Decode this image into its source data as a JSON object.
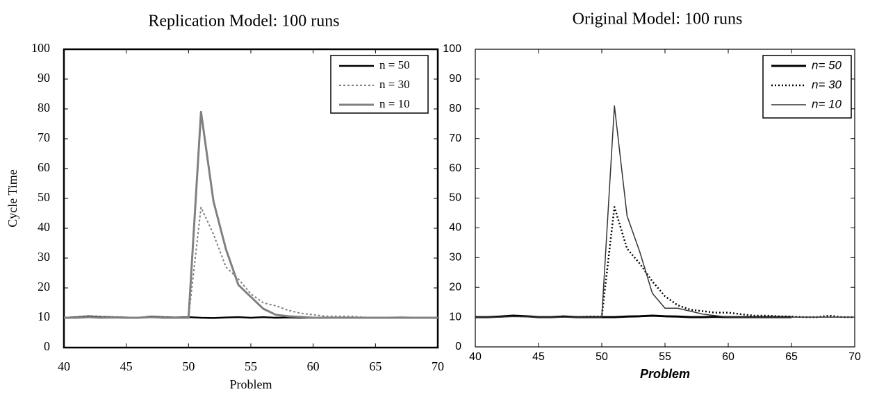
{
  "chart_data": [
    {
      "type": "line",
      "title": "Replication Model: 100 runs",
      "xlabel": "Problem",
      "ylabel": "Cycle Time",
      "x": [
        40,
        41,
        42,
        43,
        44,
        45,
        46,
        47,
        48,
        49,
        50,
        51,
        52,
        53,
        54,
        55,
        56,
        57,
        58,
        59,
        60,
        61,
        62,
        63,
        64,
        65,
        66,
        67,
        68,
        69,
        70
      ],
      "xlim": [
        40,
        70
      ],
      "xticks": [
        40,
        45,
        50,
        55,
        60,
        65,
        70
      ],
      "ylim": [
        0,
        100
      ],
      "yticks": [
        0,
        10,
        20,
        30,
        40,
        50,
        60,
        70,
        80,
        90,
        100
      ],
      "legend": "upper right",
      "series": [
        {
          "name": "n = 50",
          "color": "#000000",
          "linestyle": "solid",
          "values": [
            10,
            10.2,
            10.5,
            10.3,
            10.2,
            10.1,
            10,
            10.4,
            10.2,
            10.1,
            10.2,
            10,
            9.9,
            10.1,
            10.2,
            10,
            10.2,
            10,
            10.1,
            10,
            10,
            10,
            10,
            10,
            10,
            10,
            10,
            10,
            10,
            10,
            10
          ]
        },
        {
          "name": "n = 30",
          "color": "#808080",
          "linestyle": "dotted",
          "values": [
            10,
            10.2,
            10.4,
            10.3,
            10.2,
            10.1,
            10.1,
            10.3,
            10.2,
            10,
            10.2,
            47,
            38,
            27,
            23,
            18,
            15,
            14,
            12.5,
            11.5,
            11,
            10.5,
            10.5,
            10.5,
            10.2,
            10,
            10,
            10,
            10,
            10,
            10
          ]
        },
        {
          "name": "n = 10",
          "color": "#808080",
          "linestyle": "solid",
          "values": [
            10,
            10,
            10.2,
            10,
            10.1,
            10,
            10,
            10.2,
            10,
            10,
            10,
            79,
            49,
            33,
            21,
            17,
            13,
            11,
            10.5,
            10.3,
            10,
            10,
            10,
            10,
            10,
            10,
            10,
            10.1,
            10,
            10,
            10
          ]
        }
      ]
    },
    {
      "type": "line",
      "title": "Original Model: 100 runs",
      "xlabel": "Problem",
      "x": [
        40,
        41,
        42,
        43,
        44,
        45,
        46,
        47,
        48,
        49,
        50,
        51,
        52,
        53,
        54,
        55,
        56,
        57,
        58,
        59,
        60,
        61,
        62,
        63,
        64,
        65,
        66,
        67,
        68,
        69,
        70
      ],
      "xlim": [
        40,
        70
      ],
      "xticks": [
        40,
        45,
        50,
        55,
        60,
        65,
        70
      ],
      "ylim": [
        0,
        100
      ],
      "yticks": [
        0,
        10,
        20,
        30,
        40,
        50,
        60,
        70,
        80,
        90,
        100
      ],
      "legend": "upper right",
      "series": [
        {
          "name": "n= 50",
          "color": "#000000",
          "linestyle": "solid",
          "values": [
            10,
            10,
            10.2,
            10.5,
            10.3,
            10,
            10,
            10.2,
            10,
            10,
            10,
            10,
            10.2,
            10.3,
            10.5,
            10.3,
            10.2,
            10,
            10,
            10.1,
            10,
            10,
            10,
            10,
            10,
            10,
            null,
            null,
            null,
            null,
            null
          ]
        },
        {
          "name": "n= 30",
          "color": "#000000",
          "linestyle": "dotted",
          "values": [
            10,
            10,
            10.2,
            10.3,
            10.2,
            10,
            10,
            10.3,
            10,
            10.2,
            10.2,
            47,
            33,
            28,
            22,
            17,
            14,
            12.5,
            12,
            11.5,
            11.5,
            11,
            10.5,
            10.5,
            10.3,
            10.2,
            10,
            10,
            10.5,
            10,
            10
          ]
        },
        {
          "name": "n= 10",
          "color": "#333333",
          "linestyle": "solid",
          "values": [
            10,
            10,
            10,
            10.2,
            10.1,
            10,
            10,
            10,
            10,
            10,
            10,
            81,
            44,
            32,
            18,
            13,
            13,
            12,
            11,
            10.5,
            10,
            10,
            10,
            10,
            10,
            10,
            10,
            10,
            10,
            10,
            10
          ]
        }
      ]
    }
  ]
}
